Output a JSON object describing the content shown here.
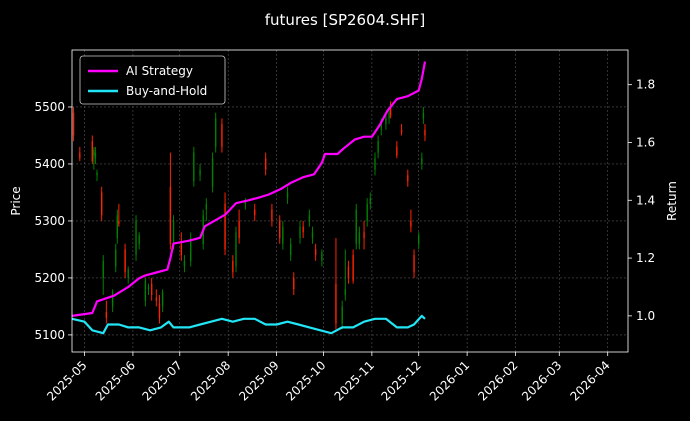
{
  "chart_data": {
    "type": "candlestick + line",
    "title": "futures [SP2604.SHF]",
    "ylabel_left": "Price",
    "ylabel_right": "Return",
    "xlim": [
      "2025-04-23",
      "2026-04-14"
    ],
    "ylim_left": [
      5070,
      5600
    ],
    "ylim_right": [
      0.875,
      1.92
    ],
    "x_ticks": [
      "2025-05",
      "2025-06",
      "2025-07",
      "2025-08",
      "2025-09",
      "2025-10",
      "2025-11",
      "2025-12",
      "2026-01",
      "2026-02",
      "2026-03",
      "2026-04"
    ],
    "y_ticks_left": [
      5100,
      5200,
      5300,
      5400,
      5500
    ],
    "y_ticks_right": [
      1.0,
      1.2,
      1.4,
      1.6,
      1.8
    ],
    "grid": true,
    "legend_position": "upper-left",
    "colors": {
      "up": "#008000",
      "down": "#ff2200",
      "ai_strategy": "#ff00ff",
      "buy_and_hold": "#22e5f5",
      "background": "#000000",
      "text": "#ffffff"
    },
    "series": [
      {
        "name": "AI Strategy",
        "axis": "right",
        "points": [
          [
            "2025-04-23",
            1.0
          ],
          [
            "2025-05-06",
            1.01
          ],
          [
            "2025-05-09",
            1.05
          ],
          [
            "2025-05-20",
            1.07
          ],
          [
            "2025-05-29",
            1.1
          ],
          [
            "2025-06-05",
            1.13
          ],
          [
            "2025-06-09",
            1.14
          ],
          [
            "2025-06-16",
            1.15
          ],
          [
            "2025-06-23",
            1.16
          ],
          [
            "2025-06-25",
            1.2
          ],
          [
            "2025-06-27",
            1.25
          ],
          [
            "2025-07-07",
            1.26
          ],
          [
            "2025-07-14",
            1.27
          ],
          [
            "2025-07-17",
            1.31
          ],
          [
            "2025-07-30",
            1.35
          ],
          [
            "2025-08-06",
            1.39
          ],
          [
            "2025-08-14",
            1.4
          ],
          [
            "2025-08-21",
            1.41
          ],
          [
            "2025-08-27",
            1.42
          ],
          [
            "2025-09-04",
            1.44
          ],
          [
            "2025-09-10",
            1.46
          ],
          [
            "2025-09-18",
            1.48
          ],
          [
            "2025-09-25",
            1.49
          ],
          [
            "2025-09-30",
            1.53
          ],
          [
            "2025-10-02",
            1.56
          ],
          [
            "2025-10-10",
            1.56
          ],
          [
            "2025-10-14",
            1.58
          ],
          [
            "2025-10-21",
            1.61
          ],
          [
            "2025-10-27",
            1.62
          ],
          [
            "2025-11-01",
            1.62
          ],
          [
            "2025-11-06",
            1.66
          ],
          [
            "2025-11-11",
            1.71
          ],
          [
            "2025-11-17",
            1.75
          ],
          [
            "2025-11-24",
            1.76
          ],
          [
            "2025-12-01",
            1.78
          ],
          [
            "2025-12-03",
            1.82
          ],
          [
            "2025-12-05",
            1.88
          ]
        ]
      },
      {
        "name": "Buy-and-Hold",
        "axis": "right",
        "points": [
          [
            "2025-04-23",
            0.99
          ],
          [
            "2025-05-01",
            0.98
          ],
          [
            "2025-05-06",
            0.95
          ],
          [
            "2025-05-13",
            0.94
          ],
          [
            "2025-05-16",
            0.97
          ],
          [
            "2025-05-23",
            0.97
          ],
          [
            "2025-05-29",
            0.96
          ],
          [
            "2025-06-05",
            0.96
          ],
          [
            "2025-06-12",
            0.95
          ],
          [
            "2025-06-19",
            0.96
          ],
          [
            "2025-06-24",
            0.98
          ],
          [
            "2025-06-27",
            0.96
          ],
          [
            "2025-07-07",
            0.96
          ],
          [
            "2025-07-14",
            0.97
          ],
          [
            "2025-07-21",
            0.98
          ],
          [
            "2025-07-28",
            0.99
          ],
          [
            "2025-08-04",
            0.98
          ],
          [
            "2025-08-11",
            0.99
          ],
          [
            "2025-08-18",
            0.99
          ],
          [
            "2025-08-25",
            0.97
          ],
          [
            "2025-09-01",
            0.97
          ],
          [
            "2025-09-08",
            0.98
          ],
          [
            "2025-09-15",
            0.97
          ],
          [
            "2025-09-22",
            0.96
          ],
          [
            "2025-09-29",
            0.95
          ],
          [
            "2025-10-06",
            0.94
          ],
          [
            "2025-10-13",
            0.96
          ],
          [
            "2025-10-20",
            0.96
          ],
          [
            "2025-10-27",
            0.98
          ],
          [
            "2025-11-03",
            0.99
          ],
          [
            "2025-11-10",
            0.99
          ],
          [
            "2025-11-17",
            0.96
          ],
          [
            "2025-11-24",
            0.96
          ],
          [
            "2025-11-28",
            0.97
          ],
          [
            "2025-12-03",
            1.0
          ],
          [
            "2025-12-05",
            0.99
          ]
        ]
      }
    ],
    "ohlc": [
      [
        "2025-04-24",
        5490,
        5500,
        5440,
        5450
      ],
      [
        "2025-04-28",
        5420,
        5430,
        5405,
        5410
      ],
      [
        "2025-05-06",
        5440,
        5450,
        5400,
        5405
      ],
      [
        "2025-05-07",
        5415,
        5430,
        5390,
        5425
      ],
      [
        "2025-05-08",
        5410,
        5430,
        5400,
        5420
      ],
      [
        "2025-05-09",
        5380,
        5390,
        5370,
        5385
      ],
      [
        "2025-05-12",
        5350,
        5360,
        5300,
        5310
      ],
      [
        "2025-05-13",
        5200,
        5240,
        5170,
        5230
      ],
      [
        "2025-05-15",
        5140,
        5160,
        5120,
        5130
      ],
      [
        "2025-05-19",
        5150,
        5180,
        5140,
        5175
      ],
      [
        "2025-05-21",
        5220,
        5260,
        5210,
        5250
      ],
      [
        "2025-05-22",
        5270,
        5320,
        5260,
        5310
      ],
      [
        "2025-05-23",
        5300,
        5330,
        5290,
        5295
      ],
      [
        "2025-05-27",
        5250,
        5260,
        5200,
        5210
      ],
      [
        "2025-05-29",
        5200,
        5220,
        5190,
        5215
      ],
      [
        "2025-06-03",
        5240,
        5310,
        5230,
        5300
      ],
      [
        "2025-06-05",
        5260,
        5280,
        5250,
        5275
      ],
      [
        "2025-06-09",
        5160,
        5200,
        5150,
        5195
      ],
      [
        "2025-06-11",
        5180,
        5190,
        5170,
        5185
      ],
      [
        "2025-06-13",
        5190,
        5200,
        5160,
        5170
      ],
      [
        "2025-06-16",
        5165,
        5180,
        5150,
        5160
      ],
      [
        "2025-06-18",
        5155,
        5170,
        5120,
        5130
      ],
      [
        "2025-06-20",
        5150,
        5180,
        5140,
        5175
      ],
      [
        "2025-06-25",
        5360,
        5420,
        5250,
        5260
      ],
      [
        "2025-06-27",
        5260,
        5310,
        5250,
        5300
      ],
      [
        "2025-07-02",
        5260,
        5280,
        5230,
        5240
      ],
      [
        "2025-07-04",
        5220,
        5240,
        5210,
        5230
      ],
      [
        "2025-07-08",
        5230,
        5280,
        5220,
        5270
      ],
      [
        "2025-07-10",
        5370,
        5430,
        5360,
        5420
      ],
      [
        "2025-07-14",
        5380,
        5400,
        5370,
        5390
      ],
      [
        "2025-07-16",
        5260,
        5320,
        5250,
        5310
      ],
      [
        "2025-07-18",
        5320,
        5340,
        5300,
        5330
      ],
      [
        "2025-07-22",
        5360,
        5420,
        5350,
        5410
      ],
      [
        "2025-07-24",
        5430,
        5490,
        5420,
        5480
      ],
      [
        "2025-07-28",
        5470,
        5480,
        5420,
        5430
      ],
      [
        "2025-07-30",
        5330,
        5350,
        5240,
        5250
      ],
      [
        "2025-08-04",
        5230,
        5240,
        5200,
        5210
      ],
      [
        "2025-08-06",
        5220,
        5290,
        5210,
        5280
      ],
      [
        "2025-08-08",
        5300,
        5320,
        5260,
        5270
      ],
      [
        "2025-08-12",
        5330,
        5340,
        5320,
        5335
      ],
      [
        "2025-08-18",
        5320,
        5330,
        5300,
        5310
      ],
      [
        "2025-08-25",
        5410,
        5420,
        5380,
        5390
      ],
      [
        "2025-08-29",
        5320,
        5330,
        5290,
        5300
      ],
      [
        "2025-09-03",
        5300,
        5310,
        5260,
        5270
      ],
      [
        "2025-09-05",
        5260,
        5300,
        5250,
        5290
      ],
      [
        "2025-09-08",
        5340,
        5360,
        5330,
        5350
      ],
      [
        "2025-09-10",
        5240,
        5270,
        5230,
        5260
      ],
      [
        "2025-09-12",
        5200,
        5210,
        5170,
        5180
      ],
      [
        "2025-09-16",
        5270,
        5300,
        5260,
        5290
      ],
      [
        "2025-09-18",
        5290,
        5300,
        5270,
        5280
      ],
      [
        "2025-09-22",
        5300,
        5320,
        5290,
        5310
      ],
      [
        "2025-09-24",
        5270,
        5290,
        5260,
        5280
      ],
      [
        "2025-09-26",
        5250,
        5260,
        5230,
        5240
      ],
      [
        "2025-09-30",
        5230,
        5250,
        5220,
        5245
      ],
      [
        "2025-10-09",
        5190,
        5270,
        5110,
        5120
      ],
      [
        "2025-10-13",
        5120,
        5160,
        5110,
        5150
      ],
      [
        "2025-10-15",
        5170,
        5250,
        5160,
        5180
      ],
      [
        "2025-10-17",
        5220,
        5230,
        5190,
        5200
      ],
      [
        "2025-10-20",
        5240,
        5250,
        5190,
        5195
      ],
      [
        "2025-10-22",
        5260,
        5330,
        5250,
        5320
      ],
      [
        "2025-10-24",
        5260,
        5290,
        5250,
        5280
      ],
      [
        "2025-10-27",
        5280,
        5300,
        5250,
        5270
      ],
      [
        "2025-10-29",
        5300,
        5340,
        5290,
        5330
      ],
      [
        "2025-10-31",
        5330,
        5350,
        5320,
        5340
      ],
      [
        "2025-11-03",
        5390,
        5420,
        5380,
        5410
      ],
      [
        "2025-11-05",
        5420,
        5450,
        5410,
        5440
      ],
      [
        "2025-11-07",
        5460,
        5480,
        5450,
        5470
      ],
      [
        "2025-11-10",
        5470,
        5490,
        5460,
        5480
      ],
      [
        "2025-11-12",
        5480,
        5500,
        5470,
        5490
      ],
      [
        "2025-11-13",
        5500,
        5510,
        5480,
        5485
      ],
      [
        "2025-11-17",
        5430,
        5440,
        5410,
        5415
      ],
      [
        "2025-11-20",
        5460,
        5470,
        5450,
        5455
      ],
      [
        "2025-11-24",
        5380,
        5390,
        5360,
        5370
      ],
      [
        "2025-11-26",
        5300,
        5320,
        5280,
        5290
      ],
      [
        "2025-11-28",
        5240,
        5250,
        5200,
        5210
      ],
      [
        "2025-12-01",
        5260,
        5280,
        5250,
        5275
      ],
      [
        "2025-12-03",
        5400,
        5420,
        5390,
        5410
      ],
      [
        "2025-12-04",
        5480,
        5500,
        5470,
        5490
      ],
      [
        "2025-12-05",
        5460,
        5470,
        5440,
        5450
      ]
    ]
  }
}
